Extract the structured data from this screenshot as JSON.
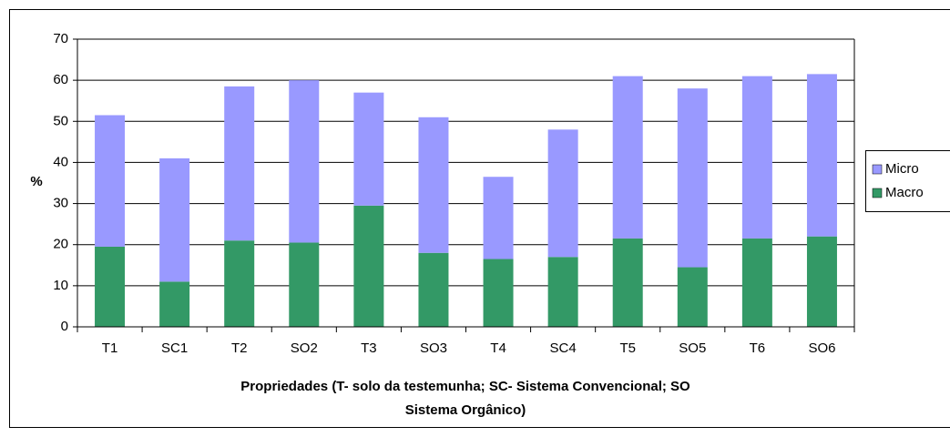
{
  "chart_data": {
    "type": "stacked_bar",
    "categories": [
      "T1",
      "SC1",
      "T2",
      "SO2",
      "T3",
      "SO3",
      "T4",
      "SC4",
      "T5",
      "SO5",
      "T6",
      "SO6"
    ],
    "series": [
      {
        "name": "Macro",
        "color": "#339966",
        "values": [
          19.5,
          11,
          21,
          20.5,
          29.5,
          18,
          16.5,
          17,
          21.5,
          14.5,
          21.5,
          22
        ]
      },
      {
        "name": "Micro",
        "color": "#9999ff",
        "values": [
          32,
          30,
          37.5,
          39.5,
          27.5,
          33,
          20,
          31,
          39.5,
          43.5,
          39.5,
          39.5
        ]
      }
    ],
    "ylabel": "%",
    "xlabel": [
      "Propriedades (T- solo da testemunha; SC- Sistema Convencional; SO",
      "Sistema Orgânico)"
    ],
    "ylim": [
      0,
      70
    ],
    "yticks": [
      0,
      10,
      20,
      30,
      40,
      50,
      60,
      70
    ],
    "grid": true
  }
}
